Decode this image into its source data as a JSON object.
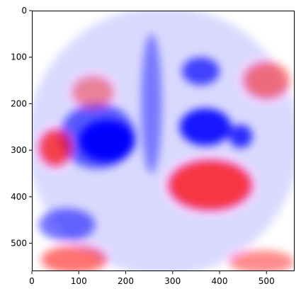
{
  "chart_data": {
    "type": "heatmap",
    "title": "",
    "xlabel": "",
    "ylabel": "",
    "colormap": "bwr",
    "colors": {
      "negative": "#0000ff",
      "zero": "#ffffff",
      "positive": "#ff0000"
    },
    "xlim": [
      0,
      560
    ],
    "ylim": [
      560,
      0
    ],
    "grid": false,
    "x_ticks": [
      0,
      100,
      200,
      300,
      400,
      500
    ],
    "y_ticks": [
      0,
      100,
      200,
      300,
      400,
      500
    ],
    "regions": [
      {
        "label": "background",
        "sign": "negative",
        "intensity": 0.15,
        "cx": 280,
        "cy": 280,
        "rx": 290,
        "ry": 290
      },
      {
        "label": "left-central blue",
        "sign": "negative",
        "intensity": 1.0,
        "cx": 160,
        "cy": 280,
        "rx": 60,
        "ry": 45
      },
      {
        "label": "left-central blue halo",
        "sign": "negative",
        "intensity": 0.6,
        "cx": 140,
        "cy": 270,
        "rx": 80,
        "ry": 70
      },
      {
        "label": "right-central blue",
        "sign": "negative",
        "intensity": 0.9,
        "cx": 370,
        "cy": 250,
        "rx": 55,
        "ry": 40
      },
      {
        "label": "right-lateral blue",
        "sign": "negative",
        "intensity": 0.8,
        "cx": 445,
        "cy": 270,
        "rx": 25,
        "ry": 25
      },
      {
        "label": "upper-right blue",
        "sign": "negative",
        "intensity": 0.7,
        "cx": 360,
        "cy": 130,
        "rx": 40,
        "ry": 30
      },
      {
        "label": "midline blue band",
        "sign": "negative",
        "intensity": 0.45,
        "cx": 255,
        "cy": 200,
        "rx": 22,
        "ry": 150
      },
      {
        "label": "lower-left blue",
        "sign": "negative",
        "intensity": 0.55,
        "cx": 75,
        "cy": 460,
        "rx": 60,
        "ry": 35
      },
      {
        "label": "lower-right red",
        "sign": "positive",
        "intensity": 0.75,
        "cx": 380,
        "cy": 375,
        "rx": 90,
        "ry": 55
      },
      {
        "label": "right-edge red",
        "sign": "positive",
        "intensity": 0.5,
        "cx": 500,
        "cy": 150,
        "rx": 50,
        "ry": 40
      },
      {
        "label": "left red spot",
        "sign": "positive",
        "intensity": 0.7,
        "cx": 50,
        "cy": 295,
        "rx": 35,
        "ry": 40
      },
      {
        "label": "upper-left red",
        "sign": "positive",
        "intensity": 0.4,
        "cx": 130,
        "cy": 175,
        "rx": 45,
        "ry": 35
      },
      {
        "label": "bottom-left red",
        "sign": "positive",
        "intensity": 0.55,
        "cx": 90,
        "cy": 535,
        "rx": 70,
        "ry": 30
      },
      {
        "label": "bottom-right red",
        "sign": "positive",
        "intensity": 0.45,
        "cx": 490,
        "cy": 540,
        "rx": 70,
        "ry": 25
      }
    ]
  }
}
